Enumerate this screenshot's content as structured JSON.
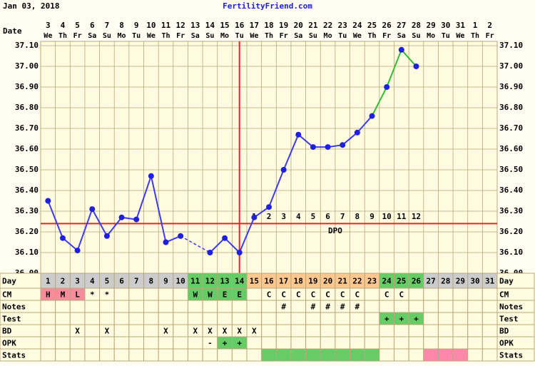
{
  "header": {
    "date_label": "Jan 03, 2018",
    "site": "FertilityFriend.com"
  },
  "chart_data": {
    "type": "line",
    "date_label": "Date",
    "dates": [
      3,
      4,
      5,
      6,
      7,
      8,
      9,
      10,
      11,
      12,
      13,
      14,
      15,
      16,
      17,
      18,
      19,
      20,
      21,
      22,
      23,
      24,
      25,
      26,
      27,
      28,
      29,
      30,
      31,
      1,
      2
    ],
    "weekdays": [
      "We",
      "Th",
      "Fr",
      "Sa",
      "Su",
      "Mo",
      "Tu",
      "We",
      "Th",
      "Fr",
      "Sa",
      "Su",
      "Mo",
      "Tu",
      "We",
      "Th",
      "Fr",
      "Sa",
      "Su",
      "Mo",
      "Tu",
      "We",
      "Th",
      "Fr",
      "Sa",
      "Su",
      "Mo",
      "Tu",
      "We",
      "Th",
      "Fr"
    ],
    "ylim": [
      36.0,
      37.1
    ],
    "yticks": [
      {
        "value": 36.0,
        "label": "36.00"
      },
      {
        "value": 36.1,
        "label": "36.10"
      },
      {
        "value": 36.2,
        "label": "36.20"
      },
      {
        "value": 36.3,
        "label": "36.30"
      },
      {
        "value": 36.4,
        "label": "36.40"
      },
      {
        "value": 36.5,
        "label": "36.50"
      },
      {
        "value": 36.6,
        "label": "36.60"
      },
      {
        "value": 36.7,
        "label": "36.70"
      },
      {
        "value": 36.8,
        "label": "36.80"
      },
      {
        "value": 36.9,
        "label": "36.90"
      },
      {
        "value": 37.0,
        "label": "37.00"
      },
      {
        "value": 37.1,
        "label": "37.10"
      }
    ],
    "grid": true,
    "marker_color": "#1f1fe0",
    "series": [
      {
        "color": "#3b3bf0",
        "values": [
          36.35,
          36.17,
          36.11,
          36.31,
          36.18,
          36.27,
          36.26,
          36.47,
          36.15,
          36.18,
          null,
          36.1,
          36.17,
          36.1,
          36.27,
          36.32,
          36.5,
          36.67,
          36.61,
          36.61,
          36.62,
          36.68,
          36.76,
          null,
          null,
          null,
          null,
          null,
          null,
          null,
          null
        ]
      },
      {
        "color": "#33bb33",
        "values": [
          null,
          null,
          null,
          null,
          null,
          null,
          null,
          null,
          null,
          null,
          null,
          null,
          null,
          null,
          null,
          null,
          null,
          null,
          null,
          null,
          null,
          null,
          null,
          36.9,
          37.08,
          37.0,
          null,
          null,
          null,
          null,
          null
        ]
      }
    ],
    "coverline": 36.24,
    "coverline_color": "#ee2222",
    "ovulation_day": 14,
    "ovulation_color": "#ee2222",
    "dpo": [
      null,
      null,
      null,
      null,
      null,
      null,
      null,
      null,
      null,
      null,
      null,
      null,
      null,
      null,
      1,
      2,
      3,
      4,
      5,
      6,
      7,
      8,
      9,
      10,
      11,
      12,
      null,
      null,
      null,
      null,
      null
    ],
    "dpo_label": "DPO"
  },
  "table": {
    "rows": [
      {
        "label": "Day",
        "cells": [
          1,
          2,
          3,
          4,
          5,
          6,
          7,
          8,
          9,
          10,
          11,
          12,
          13,
          14,
          15,
          16,
          17,
          18,
          19,
          20,
          21,
          22,
          23,
          24,
          25,
          26,
          27,
          28,
          29,
          30,
          31
        ],
        "fills": [
          "#cccccc",
          "#cccccc",
          "#cccccc",
          "#cccccc",
          "#cccccc",
          "#cccccc",
          "#cccccc",
          "#cccccc",
          "#cccccc",
          "#cccccc",
          "#66cc66",
          "#66cc66",
          "#66cc66",
          "#66cc66",
          "#fcc890",
          "#fcc890",
          "#fcc890",
          "#fcc890",
          "#fcc890",
          "#fcc890",
          "#fcc890",
          "#fcc890",
          "#fcc890",
          "#66cc66",
          "#66cc66",
          "#66cc66",
          "#cccccc",
          "#cccccc",
          "#cccccc",
          "#cccccc",
          "#cccccc"
        ]
      },
      {
        "label": "CM",
        "cells": [
          "H",
          "M",
          "L",
          "*",
          "*",
          null,
          null,
          null,
          null,
          null,
          "W",
          "W",
          "E",
          "E",
          null,
          "C",
          "C",
          "C",
          "C",
          "C",
          "C",
          "C",
          null,
          "C",
          "C",
          null,
          null,
          null,
          null,
          null,
          null
        ],
        "fills": [
          "#f78c9c",
          "#f78c9c",
          "#f78c9c",
          null,
          null,
          null,
          null,
          null,
          null,
          null,
          "#66cc66",
          "#66cc66",
          "#66cc66",
          "#66cc66",
          null,
          null,
          null,
          null,
          null,
          null,
          null,
          null,
          null,
          null,
          null,
          null,
          null,
          null,
          null,
          null,
          null
        ]
      },
      {
        "label": "Notes",
        "cells": [
          null,
          null,
          null,
          null,
          null,
          null,
          null,
          null,
          null,
          null,
          null,
          null,
          null,
          null,
          null,
          null,
          "#",
          null,
          "#",
          "#",
          "#",
          "#",
          null,
          null,
          null,
          null,
          null,
          null,
          null,
          null,
          null
        ]
      },
      {
        "label": "Test",
        "cells": [
          null,
          null,
          null,
          null,
          null,
          null,
          null,
          null,
          null,
          null,
          null,
          null,
          null,
          null,
          null,
          null,
          null,
          null,
          null,
          null,
          null,
          null,
          null,
          "+",
          "+",
          "+",
          null,
          null,
          null,
          null,
          null
        ],
        "fills": [
          null,
          null,
          null,
          null,
          null,
          null,
          null,
          null,
          null,
          null,
          null,
          null,
          null,
          null,
          null,
          null,
          null,
          null,
          null,
          null,
          null,
          null,
          null,
          "#66cc66",
          "#66cc66",
          "#66cc66",
          null,
          null,
          null,
          null,
          null
        ]
      },
      {
        "label": "BD",
        "cells": [
          null,
          null,
          "X",
          null,
          "X",
          null,
          null,
          null,
          "X",
          null,
          "X",
          "X",
          "X",
          "X",
          "X",
          null,
          null,
          null,
          null,
          null,
          null,
          null,
          null,
          null,
          null,
          null,
          null,
          null,
          null,
          null,
          null
        ]
      },
      {
        "label": "OPK",
        "cells": [
          null,
          null,
          null,
          null,
          null,
          null,
          null,
          null,
          null,
          null,
          null,
          "-",
          "+",
          "+",
          null,
          null,
          null,
          null,
          null,
          null,
          null,
          null,
          null,
          null,
          null,
          null,
          null,
          null,
          null,
          null,
          null
        ],
        "fills": [
          null,
          null,
          null,
          null,
          null,
          null,
          null,
          null,
          null,
          null,
          null,
          null,
          "#66cc66",
          "#66cc66",
          null,
          null,
          null,
          null,
          null,
          null,
          null,
          null,
          null,
          null,
          null,
          null,
          null,
          null,
          null,
          null,
          null
        ]
      },
      {
        "label": "Stats",
        "cells": [
          null,
          null,
          null,
          null,
          null,
          null,
          null,
          null,
          null,
          null,
          null,
          null,
          null,
          null,
          null,
          null,
          null,
          null,
          null,
          null,
          null,
          null,
          null,
          null,
          null,
          null,
          null,
          null,
          null,
          null,
          null
        ],
        "fills": [
          null,
          null,
          null,
          null,
          null,
          null,
          null,
          null,
          null,
          null,
          null,
          null,
          null,
          null,
          null,
          "#66cc66",
          "#66cc66",
          "#66cc66",
          "#66cc66",
          "#66cc66",
          "#66cc66",
          "#66cc66",
          "#66cc66",
          null,
          null,
          null,
          "#ff88aa",
          "#ff88aa",
          "#ff88aa",
          null,
          null
        ]
      }
    ]
  }
}
